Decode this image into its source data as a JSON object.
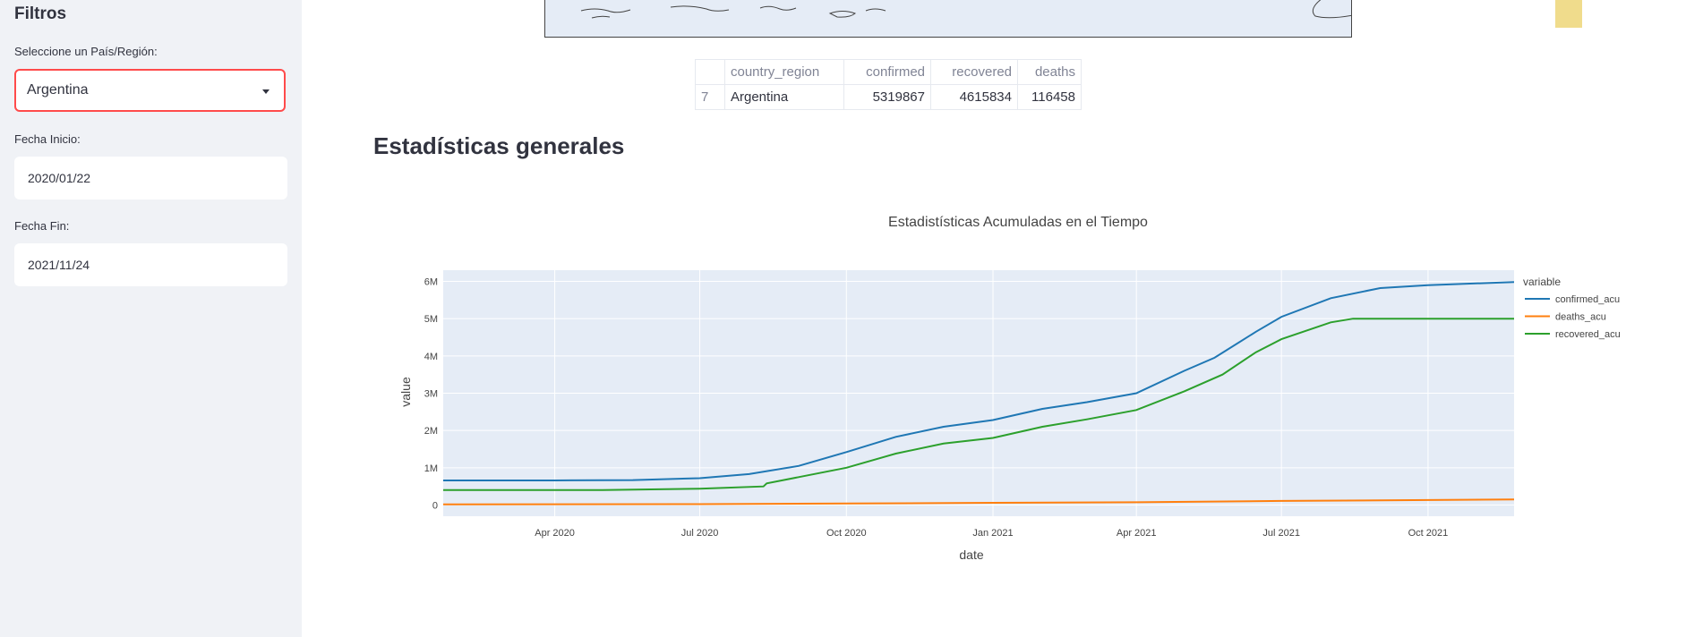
{
  "sidebar": {
    "title": "Filtros",
    "country_label": "Seleccione un País/Región:",
    "country_value": "Argentina",
    "start_label": "Fecha Inicio:",
    "start_value": "2020/01/22",
    "end_label": "Fecha Fin:",
    "end_value": "2021/11/24"
  },
  "table": {
    "headers": [
      "",
      "country_region",
      "confirmed",
      "recovered",
      "deaths"
    ],
    "rows": [
      [
        "7",
        "Argentina",
        "5319867",
        "4615834",
        "116458"
      ]
    ]
  },
  "section_title": "Estadísticas generales",
  "chart_data": {
    "type": "line",
    "title": "Estadistísticas Acumuladas en el Tiempo",
    "xlabel": "date",
    "ylabel": "value",
    "legend_title": "variable",
    "legend_position": "top-right outside",
    "grid": true,
    "xlim": [
      "2020-01-22",
      "2021-11-24"
    ],
    "ylim": [
      -300000,
      6300000
    ],
    "x_ticks": [
      {
        "date": "2020-04-01",
        "label": "Apr 2020"
      },
      {
        "date": "2020-07-01",
        "label": "Jul 2020"
      },
      {
        "date": "2020-10-01",
        "label": "Oct 2020"
      },
      {
        "date": "2021-01-01",
        "label": "Jan 2021"
      },
      {
        "date": "2021-04-01",
        "label": "Apr 2021"
      },
      {
        "date": "2021-07-01",
        "label": "Jul 2021"
      },
      {
        "date": "2021-10-01",
        "label": "Oct 2021"
      }
    ],
    "y_ticks": [
      {
        "value": 0,
        "label": "0"
      },
      {
        "value": 1000000,
        "label": "1M"
      },
      {
        "value": 2000000,
        "label": "2M"
      },
      {
        "value": 3000000,
        "label": "3M"
      },
      {
        "value": 4000000,
        "label": "4M"
      },
      {
        "value": 5000000,
        "label": "5M"
      },
      {
        "value": 6000000,
        "label": "6M"
      }
    ],
    "series": [
      {
        "name": "confirmed_acu",
        "color": "#1f77b4",
        "points": [
          [
            "2020-01-22",
            660000
          ],
          [
            "2020-04-01",
            660000
          ],
          [
            "2020-05-20",
            670000
          ],
          [
            "2020-07-01",
            720000
          ],
          [
            "2020-08-01",
            830000
          ],
          [
            "2020-09-01",
            1050000
          ],
          [
            "2020-10-01",
            1420000
          ],
          [
            "2020-11-01",
            1830000
          ],
          [
            "2020-12-01",
            2100000
          ],
          [
            "2021-01-01",
            2280000
          ],
          [
            "2021-02-01",
            2580000
          ],
          [
            "2021-03-01",
            2760000
          ],
          [
            "2021-04-01",
            3000000
          ],
          [
            "2021-05-01",
            3600000
          ],
          [
            "2021-05-20",
            3950000
          ],
          [
            "2021-06-15",
            4650000
          ],
          [
            "2021-07-01",
            5050000
          ],
          [
            "2021-08-01",
            5550000
          ],
          [
            "2021-09-01",
            5820000
          ],
          [
            "2021-10-01",
            5900000
          ],
          [
            "2021-11-24",
            5980000
          ]
        ]
      },
      {
        "name": "deaths_acu",
        "color": "#ff7f0e",
        "points": [
          [
            "2020-01-22",
            20000
          ],
          [
            "2020-07-01",
            25000
          ],
          [
            "2020-10-01",
            40000
          ],
          [
            "2021-01-01",
            60000
          ],
          [
            "2021-04-01",
            75000
          ],
          [
            "2021-07-01",
            110000
          ],
          [
            "2021-11-24",
            150000
          ]
        ]
      },
      {
        "name": "recovered_acu",
        "color": "#2ca02c",
        "points": [
          [
            "2020-01-22",
            400000
          ],
          [
            "2020-05-01",
            400000
          ],
          [
            "2020-07-01",
            440000
          ],
          [
            "2020-08-10",
            500000
          ],
          [
            "2020-08-12",
            580000
          ],
          [
            "2020-09-01",
            750000
          ],
          [
            "2020-10-01",
            1000000
          ],
          [
            "2020-11-01",
            1380000
          ],
          [
            "2020-12-01",
            1650000
          ],
          [
            "2021-01-01",
            1800000
          ],
          [
            "2021-02-01",
            2100000
          ],
          [
            "2021-03-01",
            2300000
          ],
          [
            "2021-04-01",
            2550000
          ],
          [
            "2021-05-01",
            3050000
          ],
          [
            "2021-05-25",
            3500000
          ],
          [
            "2021-06-15",
            4100000
          ],
          [
            "2021-07-01",
            4450000
          ],
          [
            "2021-08-01",
            4900000
          ],
          [
            "2021-08-15",
            5000000
          ],
          [
            "2021-11-24",
            5000000
          ]
        ]
      }
    ]
  }
}
